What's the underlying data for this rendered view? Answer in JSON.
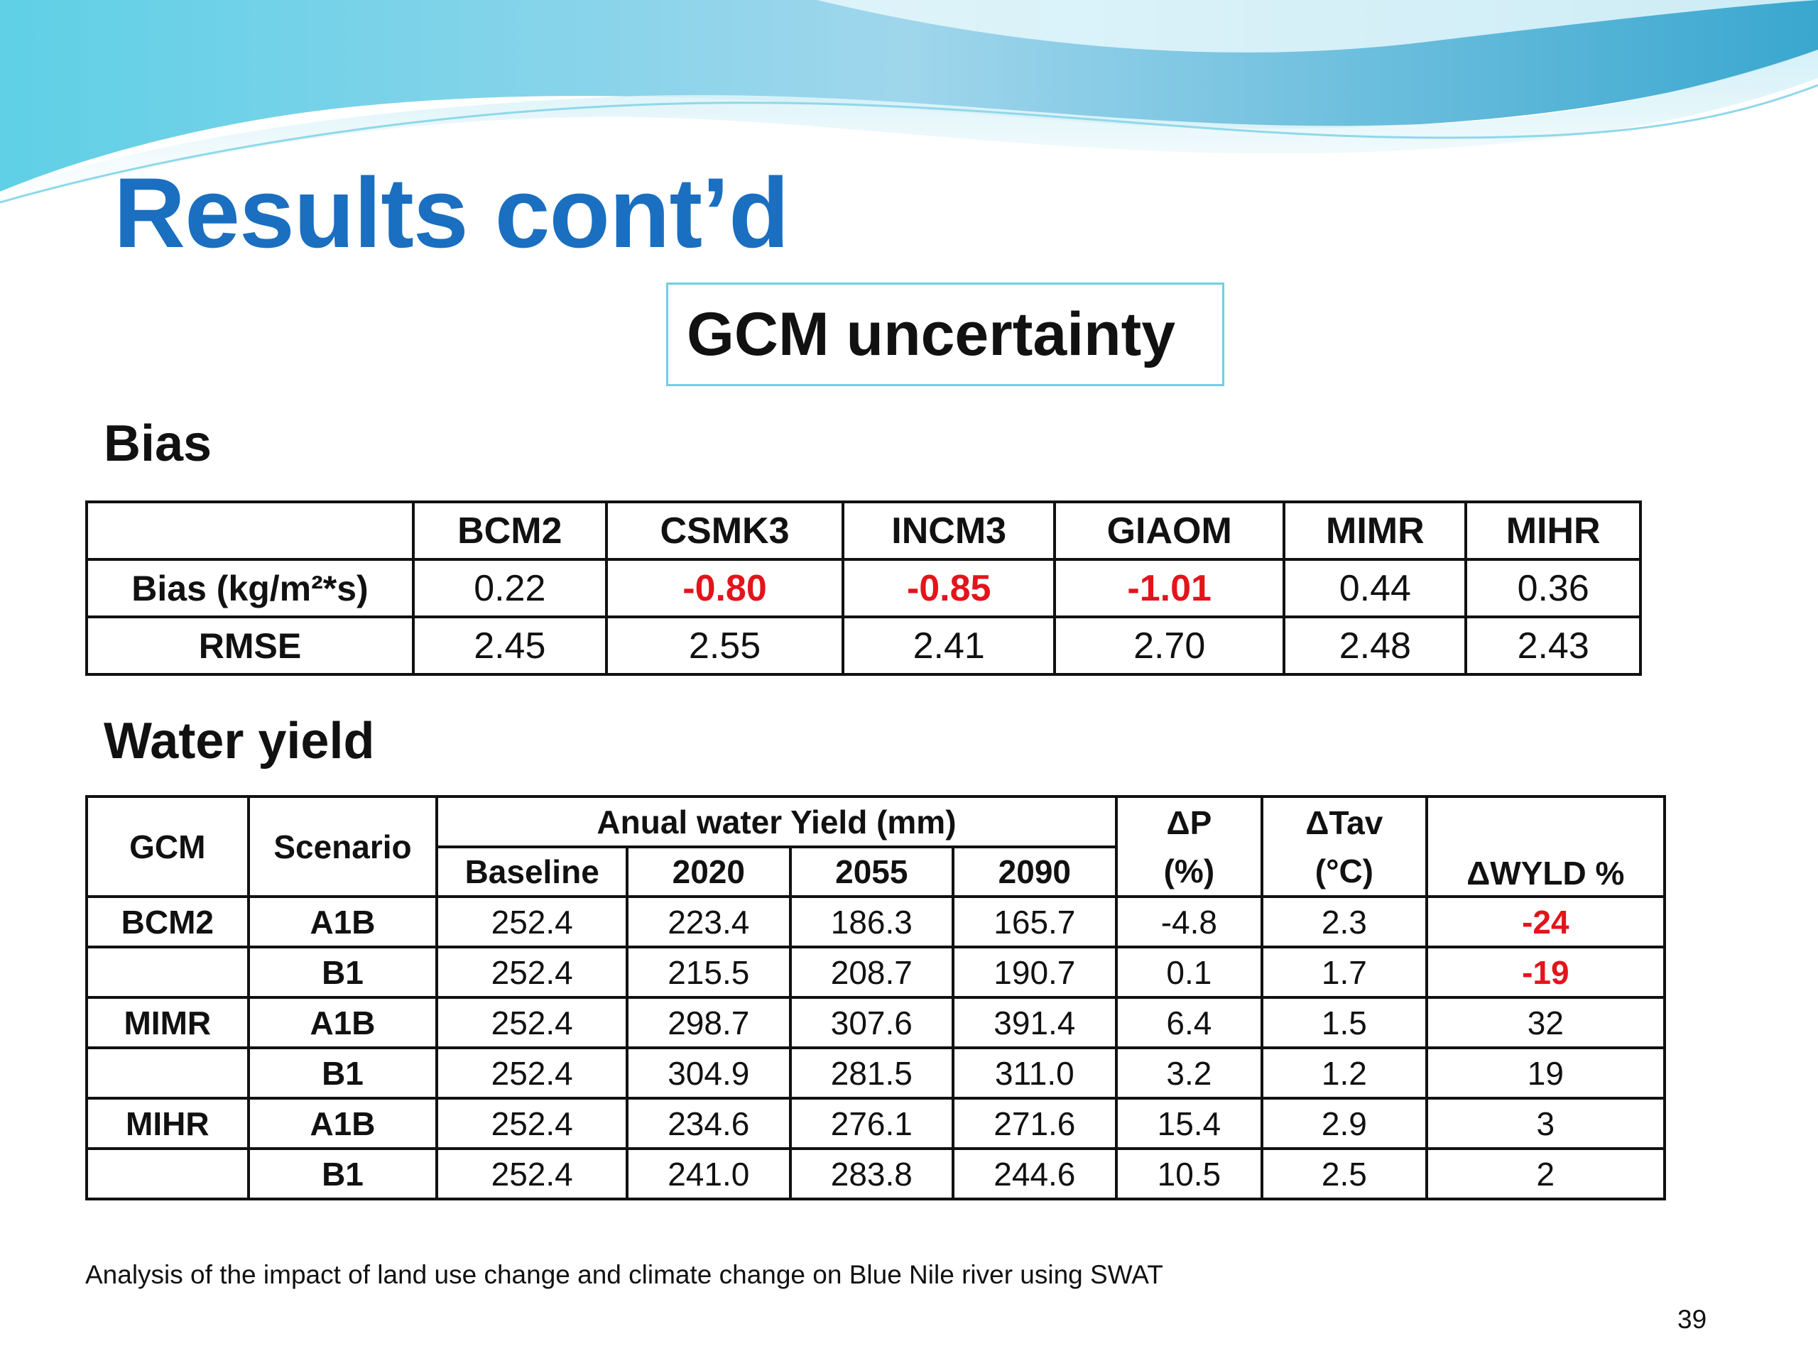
{
  "slide": {
    "title": "Results cont’d",
    "subtitle": "GCM uncertainty",
    "footer": "Analysis of the impact of land use change and climate change on Blue Nile river using SWAT",
    "page_number": "39",
    "colors": {
      "title": "#1a6fc0",
      "negative": "#e3141b",
      "box_border": "#6fd0e2",
      "wave_light": "#c9eef6",
      "wave_dark": "#3aa7cf"
    }
  },
  "bias": {
    "heading": "Bias",
    "columns": [
      "",
      "BCM2",
      "CSMK3",
      "INCM3",
      "GIAOM",
      "MIMR",
      "MIHR"
    ],
    "rows": [
      {
        "label": "Bias (kg/m²*s)",
        "values": [
          "0.22",
          "-0.80",
          "-0.85",
          "-1.01",
          "0.44",
          "0.36"
        ]
      },
      {
        "label": "RMSE",
        "values": [
          "2.45",
          "2.55",
          "2.41",
          "2.70",
          "2.48",
          "2.43"
        ]
      }
    ]
  },
  "water_yield": {
    "heading": "Water yield",
    "headers": {
      "gcm": "GCM",
      "scenario": "Scenario",
      "group": "Anual water Yield (mm)",
      "baseline": "Baseline",
      "y2020": "2020",
      "y2055": "2055",
      "y2090": "2090",
      "dp_top": "ΔP",
      "dp_bottom": "(%)",
      "dtav_top": "ΔTav",
      "dtav_bottom": "(°C)",
      "dwyld": "ΔWYLD %"
    },
    "rows": [
      {
        "gcm": "BCM2",
        "scenario": "A1B",
        "baseline": "252.4",
        "y2020": "223.4",
        "y2055": "186.3",
        "y2090": "165.7",
        "dp": "-4.8",
        "dtav": "2.3",
        "dwyld": "-24"
      },
      {
        "gcm": "",
        "scenario": "B1",
        "baseline": "252.4",
        "y2020": "215.5",
        "y2055": "208.7",
        "y2090": "190.7",
        "dp": "0.1",
        "dtav": "1.7",
        "dwyld": "-19"
      },
      {
        "gcm": "MIMR",
        "scenario": "A1B",
        "baseline": "252.4",
        "y2020": "298.7",
        "y2055": "307.6",
        "y2090": "391.4",
        "dp": "6.4",
        "dtav": "1.5",
        "dwyld": "32"
      },
      {
        "gcm": "",
        "scenario": "B1",
        "baseline": "252.4",
        "y2020": "304.9",
        "y2055": "281.5",
        "y2090": "311.0",
        "dp": "3.2",
        "dtav": "1.2",
        "dwyld": "19"
      },
      {
        "gcm": "MIHR",
        "scenario": "A1B",
        "baseline": "252.4",
        "y2020": "234.6",
        "y2055": "276.1",
        "y2090": "271.6",
        "dp": "15.4",
        "dtav": "2.9",
        "dwyld": "3"
      },
      {
        "gcm": "",
        "scenario": "B1",
        "baseline": "252.4",
        "y2020": "241.0",
        "y2055": "283.8",
        "y2090": "244.6",
        "dp": "10.5",
        "dtav": "2.5",
        "dwyld": "2"
      }
    ]
  }
}
